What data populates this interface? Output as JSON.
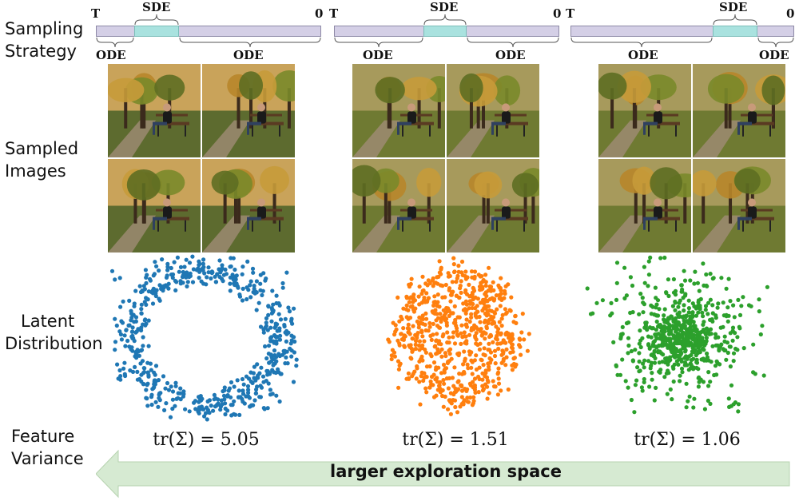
{
  "row_labels": {
    "sampling_strategy": [
      "Sampling",
      "Strategy"
    ],
    "sampled_images": [
      "Sampled",
      "Images"
    ],
    "latent_distribution": [
      "Latent",
      "Distribution"
    ],
    "feature_variance": [
      "Feature",
      "Variance"
    ]
  },
  "timeline_labels": {
    "start": "T",
    "end": "0",
    "sde": "SDE",
    "ode": "ODE"
  },
  "columns": [
    {
      "variance_text": "tr(Σ) = 5.05",
      "scatter_color": "#1f77b4",
      "scatter_shape": "ring"
    },
    {
      "variance_text": "tr(Σ) = 1.51",
      "scatter_color": "#ff7f0e",
      "scatter_shape": "blob"
    },
    {
      "variance_text": "tr(Σ) = 1.06",
      "scatter_color": "#2ca02c",
      "scatter_shape": "dense-core"
    }
  ],
  "arrow": {
    "label": "larger exploration space",
    "color": "#d6ead2"
  },
  "chart_data": {
    "type": "scatter",
    "series": [
      {
        "name": "",
        "trace": 5.05
      },
      {
        "name": "",
        "trace": 1.51
      },
      {
        "name": "",
        "trace": 1.06
      }
    ]
  }
}
